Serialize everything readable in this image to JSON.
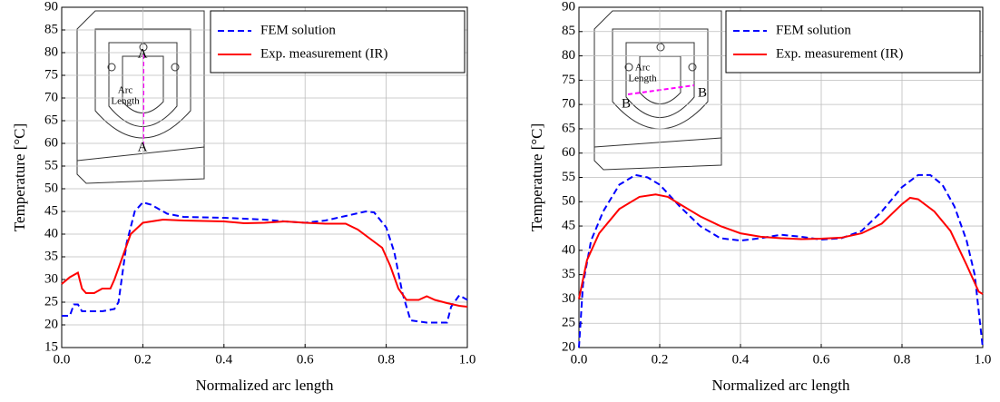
{
  "chart_data": [
    {
      "type": "line",
      "xlabel": "Normalized arc length",
      "ylabel": "Temperature [°C]",
      "xlim": [
        0,
        1
      ],
      "ylim": [
        15,
        90
      ],
      "xticks": [
        {
          "value": 0,
          "label": "0.0"
        },
        0.2,
        0.4,
        0.6,
        0.8,
        {
          "value": 1,
          "label": "1.0"
        }
      ],
      "yticks": [
        15,
        20,
        25,
        30,
        35,
        40,
        45,
        50,
        55,
        60,
        65,
        70,
        75,
        80,
        85,
        90
      ],
      "grid": true,
      "legend": "upper right",
      "annotations": [
        "A",
        "A",
        "Arc",
        "Length"
      ],
      "series": [
        {
          "name": "FEM solution",
          "color": "#0000ff",
          "dash": true,
          "x": [
            0,
            0.02,
            0.03,
            0.04,
            0.05,
            0.1,
            0.13,
            0.14,
            0.16,
            0.18,
            0.2,
            0.22,
            0.26,
            0.3,
            0.4,
            0.5,
            0.55,
            0.6,
            0.65,
            0.7,
            0.75,
            0.77,
            0.8,
            0.82,
            0.84,
            0.86,
            0.9,
            0.95,
            0.96,
            0.98,
            1
          ],
          "values": [
            22,
            22,
            24.5,
            24.5,
            23,
            23,
            23.5,
            25,
            38,
            45,
            47,
            46.5,
            44.5,
            43.8,
            43.6,
            43.2,
            42.8,
            42.5,
            43,
            44,
            45,
            44.8,
            41.5,
            36,
            27,
            21,
            20.5,
            20.5,
            24,
            26.5,
            25.5
          ]
        },
        {
          "name": "Exp. measurement (IR)",
          "color": "#ff0000",
          "dash": false,
          "x": [
            0,
            0.02,
            0.04,
            0.05,
            0.06,
            0.08,
            0.1,
            0.12,
            0.13,
            0.15,
            0.17,
            0.2,
            0.25,
            0.3,
            0.4,
            0.45,
            0.5,
            0.55,
            0.6,
            0.65,
            0.7,
            0.73,
            0.76,
            0.79,
            0.81,
            0.83,
            0.85,
            0.88,
            0.9,
            0.92,
            0.95,
            0.98,
            1
          ],
          "values": [
            29,
            30.5,
            31.5,
            28,
            27,
            27,
            28,
            28,
            30,
            35,
            40,
            42.5,
            43.2,
            43,
            42.8,
            42.4,
            42.5,
            42.8,
            42.5,
            42.3,
            42.3,
            41,
            39,
            37,
            33,
            28,
            25.5,
            25.5,
            26.3,
            25.5,
            24.8,
            24.2,
            24
          ]
        }
      ]
    },
    {
      "type": "line",
      "xlabel": "Normalized arc length",
      "ylabel": "Temperature [°C]",
      "xlim": [
        0,
        1
      ],
      "ylim": [
        20,
        90
      ],
      "xticks": [
        {
          "value": 0,
          "label": "0.0"
        },
        0.2,
        0.4,
        0.6,
        0.8,
        {
          "value": 1,
          "label": "1.0"
        }
      ],
      "yticks": [
        20,
        25,
        30,
        35,
        40,
        45,
        50,
        55,
        60,
        65,
        70,
        75,
        80,
        85,
        90
      ],
      "grid": true,
      "legend": "upper right",
      "annotations": [
        "Arc",
        "Length",
        "B",
        "B"
      ],
      "series": [
        {
          "name": "FEM solution",
          "color": "#0000ff",
          "dash": true,
          "x": [
            0,
            0.01,
            0.03,
            0.06,
            0.1,
            0.14,
            0.17,
            0.2,
            0.25,
            0.3,
            0.35,
            0.4,
            0.45,
            0.5,
            0.55,
            0.6,
            0.65,
            0.7,
            0.75,
            0.8,
            0.84,
            0.87,
            0.9,
            0.93,
            0.96,
            0.98,
            1
          ],
          "values": [
            20,
            33,
            42,
            48,
            53.5,
            55.5,
            55,
            53.5,
            49,
            45,
            42.5,
            42,
            42.5,
            43.2,
            42.8,
            42.2,
            42.5,
            44,
            48,
            53,
            55.5,
            55.5,
            53.5,
            49,
            42,
            35,
            20
          ]
        },
        {
          "name": "Exp. measurement (IR)",
          "color": "#ff0000",
          "dash": false,
          "x": [
            0,
            0.02,
            0.05,
            0.1,
            0.15,
            0.19,
            0.22,
            0.25,
            0.3,
            0.35,
            0.4,
            0.45,
            0.5,
            0.55,
            0.6,
            0.65,
            0.7,
            0.75,
            0.8,
            0.82,
            0.84,
            0.88,
            0.92,
            0.96,
            0.99,
            1
          ],
          "values": [
            30,
            38,
            43.5,
            48.5,
            51,
            51.5,
            51,
            49.5,
            47,
            45,
            43.5,
            42.8,
            42.5,
            42.3,
            42.4,
            42.6,
            43.5,
            45.5,
            49.5,
            50.8,
            50.5,
            48,
            44,
            37,
            31.5,
            31
          ]
        }
      ]
    }
  ]
}
